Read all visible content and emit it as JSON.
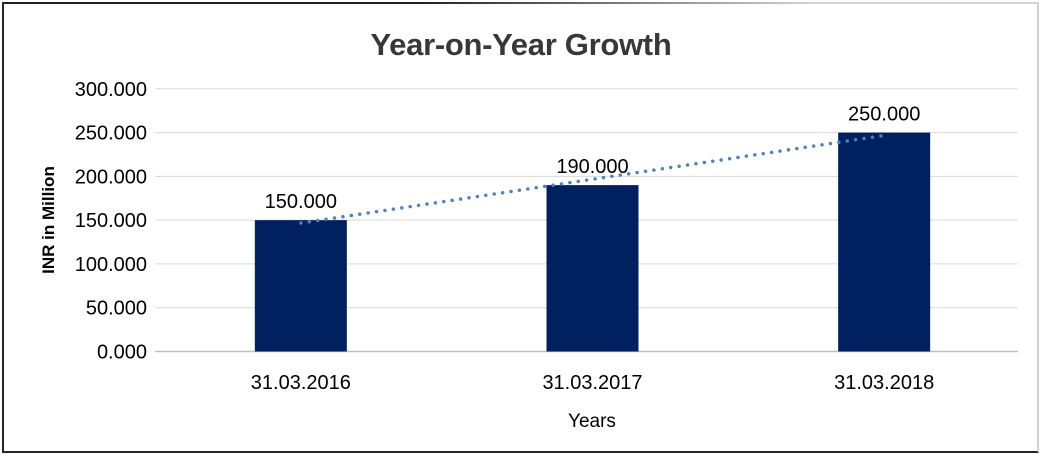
{
  "chart_data": {
    "type": "bar",
    "title": "Year-on-Year Growth",
    "xlabel": "Years",
    "ylabel": "INR in Million",
    "categories": [
      "31.03.2016",
      "31.03.2017",
      "31.03.2018"
    ],
    "values": [
      150,
      190,
      250
    ],
    "value_labels": [
      "150.000",
      "190.000",
      "250.000"
    ],
    "y_ticks": [
      0,
      50,
      100,
      150,
      200,
      250,
      300
    ],
    "y_tick_labels": [
      "0.000",
      "50.000",
      "100.000",
      "150.000",
      "200.000",
      "250.000",
      "300.000"
    ],
    "ylim": [
      0,
      300
    ],
    "grid": "horizontal-only",
    "legend": "none",
    "bar_color": "#002060",
    "gridline_color": "#d9d9d9",
    "axis_line_color": "#bfbfbf",
    "label_color": "#000000",
    "title_color": "#383838",
    "trendline": {
      "type": "linear",
      "style": "dotted",
      "color": "#4f81bd",
      "start_value": 146.7,
      "end_value": 246.7
    }
  }
}
